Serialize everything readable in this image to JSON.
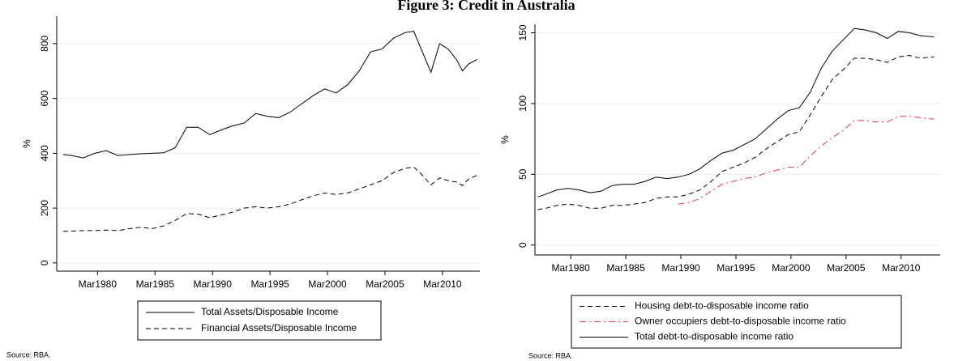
{
  "title": "Figure 3: Credit in Australia",
  "chart_data": [
    {
      "type": "line",
      "ylabel": "%",
      "source": "Source: RBA.",
      "grid": true,
      "legend": "bottom",
      "x": [
        1977.25,
        1978,
        1979,
        1980,
        1981,
        1982,
        1983,
        1984,
        1985,
        1986,
        1987,
        1988,
        1989,
        1990,
        1991,
        1992,
        1993,
        1994,
        1995,
        1996,
        1997,
        1998,
        1999,
        2000,
        2001,
        2002,
        2003,
        2004,
        2005,
        2006,
        2007,
        2007.75,
        2008.5,
        2009.25,
        2010,
        2010.75,
        2011.5,
        2012,
        2012.5,
        2013.25
      ],
      "xlim": [
        1976.7,
        2013.5
      ],
      "xticks": [
        {
          "value": 1980.25,
          "label": "Mar1980"
        },
        {
          "value": 1985.25,
          "label": "Mar1985"
        },
        {
          "value": 1990.25,
          "label": "Mar1990"
        },
        {
          "value": 1995.25,
          "label": "Mar1995"
        },
        {
          "value": 2000.25,
          "label": "Mar2000"
        },
        {
          "value": 2005.25,
          "label": "Mar2005"
        },
        {
          "value": 2010.25,
          "label": "Mar2010"
        }
      ],
      "ylim": [
        -30,
        900
      ],
      "yticks": [
        0,
        200,
        400,
        600,
        800
      ],
      "series": [
        {
          "name": "Total Assets/Disposable Income",
          "color": "#000000",
          "style": "solid",
          "values": [
            395,
            392,
            383,
            400,
            410,
            392,
            395,
            398,
            400,
            402,
            420,
            495,
            495,
            468,
            485,
            500,
            510,
            545,
            535,
            530,
            550,
            580,
            610,
            635,
            620,
            650,
            700,
            770,
            780,
            820,
            840,
            845,
            770,
            695,
            800,
            780,
            740,
            700,
            725,
            742
          ]
        },
        {
          "name": "Financial Assets/Disposable Income",
          "color": "#000000",
          "style": "dashed",
          "values": [
            115,
            116,
            118,
            118,
            120,
            118,
            125,
            130,
            125,
            135,
            155,
            180,
            178,
            165,
            175,
            185,
            200,
            205,
            200,
            205,
            215,
            230,
            245,
            255,
            250,
            255,
            270,
            285,
            300,
            330,
            345,
            350,
            320,
            285,
            310,
            300,
            295,
            282,
            305,
            320
          ]
        }
      ]
    },
    {
      "type": "line",
      "ylabel": "%",
      "source": "Source: RBA.",
      "grid": true,
      "legend": "bottom",
      "x": [
        1977.25,
        1978,
        1979,
        1980,
        1981,
        1982,
        1983,
        1984,
        1985,
        1986,
        1987,
        1988,
        1989,
        1990,
        1991,
        1992,
        1993,
        1994,
        1995,
        1996,
        1997,
        1998,
        1999,
        2000,
        2001,
        2002,
        2003,
        2004,
        2005,
        2006,
        2007,
        2008,
        2009,
        2010,
        2011,
        2012,
        2013.25
      ],
      "xlim": [
        1977.0,
        2013.8
      ],
      "xticks": [
        {
          "value": 1980.25,
          "label": "Mar1980"
        },
        {
          "value": 1985.25,
          "label": "Mar1985"
        },
        {
          "value": 1990.25,
          "label": "Mar1990"
        },
        {
          "value": 1995.25,
          "label": "Mar1995"
        },
        {
          "value": 2000.25,
          "label": "Mar2000"
        },
        {
          "value": 2005.25,
          "label": "Mar2005"
        },
        {
          "value": 2010.25,
          "label": "Mar2010"
        }
      ],
      "ylim": [
        -7,
        156
      ],
      "yticks": [
        0,
        50,
        100,
        150
      ],
      "series": [
        {
          "name": "Housing debt-to-disposable income ratio",
          "color": "#000000",
          "style": "dashed",
          "values": [
            25,
            26,
            28,
            29,
            28,
            26,
            26,
            28,
            28,
            29,
            30,
            33,
            34,
            34,
            36,
            39,
            45,
            52,
            55,
            58,
            62,
            68,
            73,
            78,
            80,
            92,
            105,
            117,
            124,
            132,
            132,
            131,
            129,
            133,
            134,
            132,
            133
          ]
        },
        {
          "name": "Owner occupiers debt-to-disposable income ratio",
          "color": "#e0355f",
          "style": "dashdot",
          "values": [
            null,
            null,
            null,
            null,
            null,
            null,
            null,
            null,
            null,
            null,
            null,
            null,
            null,
            29,
            30,
            33,
            38,
            43,
            45,
            47,
            48,
            51,
            53,
            55,
            55,
            63,
            70,
            76,
            81,
            88,
            88,
            87,
            87,
            91,
            91,
            90,
            89
          ]
        },
        {
          "name": "Total debt-to-disposable income ratio",
          "color": "#000000",
          "style": "solid",
          "values": [
            34,
            36,
            39,
            40,
            39,
            37,
            38,
            42,
            43,
            43,
            45,
            48,
            47,
            48,
            50,
            54,
            60,
            65,
            67,
            71,
            75,
            82,
            89,
            95,
            97,
            108,
            125,
            137,
            145,
            153,
            152,
            150,
            146,
            151,
            150,
            148,
            147
          ]
        }
      ]
    }
  ]
}
